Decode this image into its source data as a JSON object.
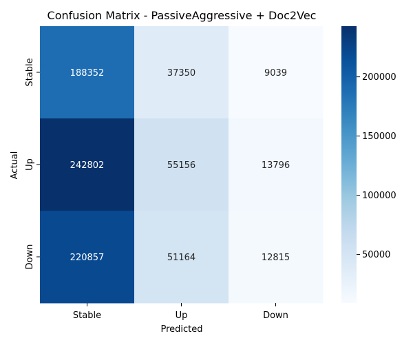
{
  "chart_data": {
    "type": "heatmap",
    "title": "Confusion Matrix - PassiveAggressive + Doc2Vec",
    "xlabel": "Predicted",
    "ylabel": "Actual",
    "x_categories": [
      "Stable",
      "Up",
      "Down"
    ],
    "y_categories": [
      "Stable",
      "Up",
      "Down"
    ],
    "values": [
      [
        188352,
        37350,
        9039
      ],
      [
        242802,
        55156,
        13796
      ],
      [
        220857,
        51164,
        12815
      ]
    ],
    "colormap": "Blues",
    "color_range": [
      9039,
      242802
    ],
    "colorbar_ticks": [
      50000,
      100000,
      150000,
      200000
    ],
    "colorbar_tick_labels": [
      "50000",
      "100000",
      "150000",
      "200000"
    ],
    "colors": {
      "low": "#f7fbff",
      "high": "#08306b"
    }
  }
}
